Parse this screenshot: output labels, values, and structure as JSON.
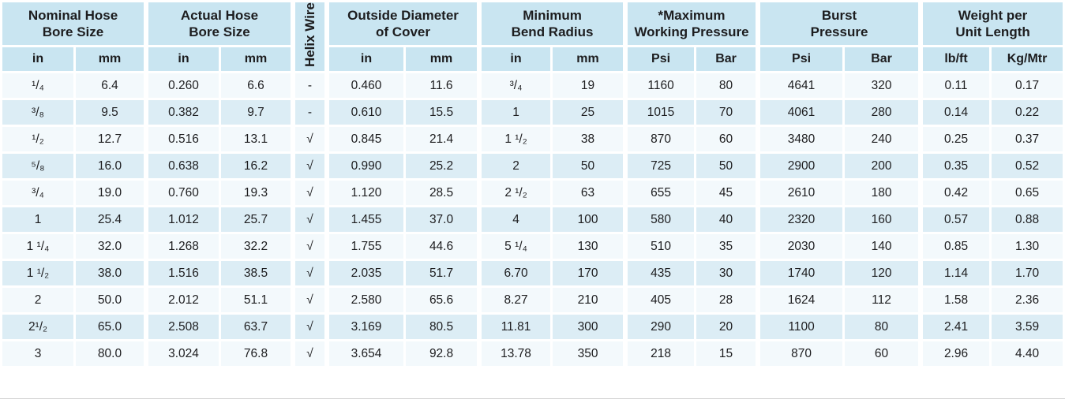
{
  "table": {
    "column_groups": [
      {
        "label": "Nominal Hose\nBore Size",
        "units": [
          "in",
          "mm"
        ]
      },
      {
        "label": "Actual Hose\nBore Size",
        "units": [
          "in",
          "mm"
        ]
      },
      {
        "label": "Helix Wire",
        "units": []
      },
      {
        "label": "Outside Diameter\nof Cover",
        "units": [
          "in",
          "mm"
        ]
      },
      {
        "label": "Minimum\nBend Radius",
        "units": [
          "in",
          "mm"
        ]
      },
      {
        "label": "*Maximum\nWorking Pressure",
        "units": [
          "Psi",
          "Bar"
        ]
      },
      {
        "label": "Burst\nPressure",
        "units": [
          "Psi",
          "Bar"
        ]
      },
      {
        "label": "Weight per\nUnit Length",
        "units": [
          "lb/ft",
          "Kg/Mtr"
        ]
      }
    ],
    "rows": [
      [
        "¹/₄",
        "6.4",
        "0.260",
        "6.6",
        "-",
        "0.460",
        "11.6",
        "³/₄",
        "19",
        "1160",
        "80",
        "4641",
        "320",
        "0.11",
        "0.17"
      ],
      [
        "³/₈",
        "9.5",
        "0.382",
        "9.7",
        "-",
        "0.610",
        "15.5",
        "1",
        "25",
        "1015",
        "70",
        "4061",
        "280",
        "0.14",
        "0.22"
      ],
      [
        "¹/₂",
        "12.7",
        "0.516",
        "13.1",
        "√",
        "0.845",
        "21.4",
        "1 ¹/₂",
        "38",
        "870",
        "60",
        "3480",
        "240",
        "0.25",
        "0.37"
      ],
      [
        "⁵/₈",
        "16.0",
        "0.638",
        "16.2",
        "√",
        "0.990",
        "25.2",
        "2",
        "50",
        "725",
        "50",
        "2900",
        "200",
        "0.35",
        "0.52"
      ],
      [
        "³/₄",
        "19.0",
        "0.760",
        "19.3",
        "√",
        "1.120",
        "28.5",
        "2 ¹/₂",
        "63",
        "655",
        "45",
        "2610",
        "180",
        "0.42",
        "0.65"
      ],
      [
        "1",
        "25.4",
        "1.012",
        "25.7",
        "√",
        "1.455",
        "37.0",
        "4",
        "100",
        "580",
        "40",
        "2320",
        "160",
        "0.57",
        "0.88"
      ],
      [
        "1 ¹/₄",
        "32.0",
        "1.268",
        "32.2",
        "√",
        "1.755",
        "44.6",
        "5 ¹/₄",
        "130",
        "510",
        "35",
        "2030",
        "140",
        "0.85",
        "1.30"
      ],
      [
        "1 ¹/₂",
        "38.0",
        "1.516",
        "38.5",
        "√",
        "2.035",
        "51.7",
        "6.70",
        "170",
        "435",
        "30",
        "1740",
        "120",
        "1.14",
        "1.70"
      ],
      [
        "2",
        "50.0",
        "2.012",
        "51.1",
        "√",
        "2.580",
        "65.6",
        "8.27",
        "210",
        "405",
        "28",
        "1624",
        "112",
        "1.58",
        "2.36"
      ],
      [
        "2¹/₂",
        "65.0",
        "2.508",
        "63.7",
        "√",
        "3.169",
        "80.5",
        "11.81",
        "300",
        "290",
        "20",
        "1100",
        "80",
        "2.41",
        "3.59"
      ],
      [
        "3",
        "80.0",
        "3.024",
        "76.8",
        "√",
        "3.654",
        "92.8",
        "13.78",
        "350",
        "218",
        "15",
        "870",
        "60",
        "2.96",
        "4.40"
      ]
    ]
  },
  "colors": {
    "header_bg": "#c9e5f1",
    "row_odd_bg": "#f3f9fc",
    "row_even_bg": "#dcedf5",
    "text": "#1d1d1f",
    "gap": "#ffffff"
  }
}
